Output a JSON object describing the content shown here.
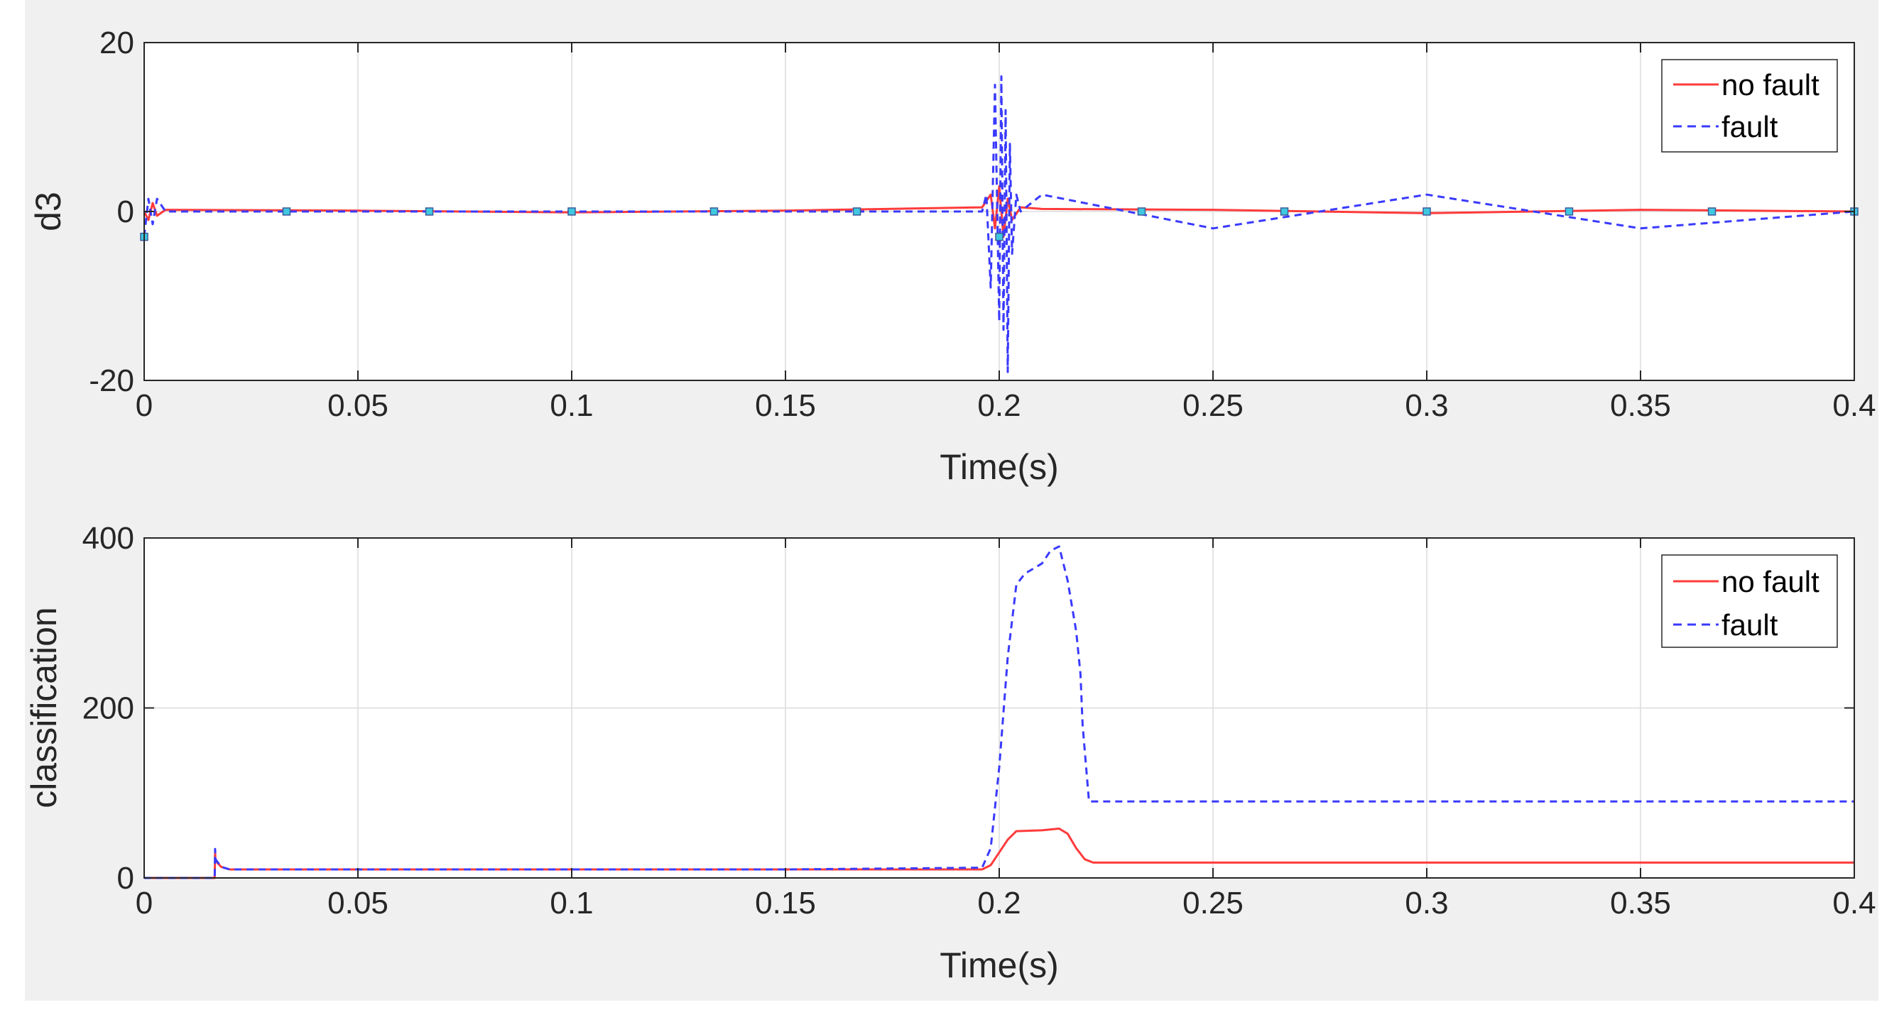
{
  "colors": {
    "figure_bg": "#f0f0f0",
    "axes_bg": "#ffffff",
    "no_fault": "#ff3b3b",
    "fault": "#3a3aff",
    "marker_fill": "#40c8e0",
    "grid": "#dcdcdc",
    "axis": "#262626"
  },
  "chart_data": [
    {
      "type": "line",
      "xlabel": "Time(s)",
      "ylabel": "d3",
      "xlim": [
        0,
        0.4
      ],
      "ylim": [
        -20,
        20
      ],
      "xticks": [
        0,
        0.05,
        0.1,
        0.15,
        0.2,
        0.25,
        0.3,
        0.35,
        0.4
      ],
      "xtick_labels": [
        "0",
        "0.05",
        "0.1",
        "0.15",
        "0.2",
        "0.25",
        "0.3",
        "0.35",
        "0.4"
      ],
      "yticks": [
        -20,
        0,
        20
      ],
      "ytick_labels": [
        "-20",
        "0",
        "20"
      ],
      "grid": true,
      "legend_position": "top-right",
      "series": [
        {
          "name": "no fault",
          "style": "solid",
          "color": "#ff3b3b",
          "x": [
            0,
            0.001,
            0.002,
            0.003,
            0.005,
            0.05,
            0.1,
            0.15,
            0.196,
            0.198,
            0.199,
            0.2,
            0.201,
            0.202,
            0.203,
            0.205,
            0.21,
            0.25,
            0.3,
            0.35,
            0.4
          ],
          "y": [
            0,
            -1,
            1,
            -0.5,
            0.2,
            0.1,
            -0.1,
            0.1,
            0.5,
            2,
            -2,
            3,
            -3,
            1.5,
            -1,
            0.5,
            0.3,
            0.2,
            -0.2,
            0.2,
            0
          ]
        },
        {
          "name": "fault",
          "style": "dashed",
          "color": "#3a3aff",
          "description": "small noise until 0.196 s, burst with peaks ~16 and ~-19 around 0.200 s, then sustained oscillation of about ±2 until 0.4 s",
          "x": [
            0,
            0.001,
            0.002,
            0.003,
            0.005,
            0.196,
            0.197,
            0.198,
            0.199,
            0.2,
            0.2005,
            0.201,
            0.2015,
            0.202,
            0.2025,
            0.203,
            0.204,
            0.205,
            0.21,
            0.25,
            0.3,
            0.35,
            0.4
          ],
          "y": [
            -3,
            1.5,
            -1.5,
            1.5,
            0,
            0,
            2,
            -9,
            15,
            -13,
            16,
            -14,
            12,
            -19,
            8,
            -5,
            2,
            0,
            2,
            -2,
            2,
            -2,
            0
          ]
        }
      ],
      "markers": {
        "x": [
          0,
          0.0333,
          0.0667,
          0.1,
          0.1333,
          0.1667,
          0.2,
          0.2333,
          0.2667,
          0.3,
          0.3333,
          0.3667,
          0.4
        ],
        "y": [
          -3,
          0,
          0,
          0,
          0,
          0,
          -3,
          0,
          0,
          0,
          0,
          0,
          0
        ]
      }
    },
    {
      "type": "line",
      "xlabel": "Time(s)",
      "ylabel": "classification",
      "xlim": [
        0,
        0.4
      ],
      "ylim": [
        0,
        400
      ],
      "xticks": [
        0,
        0.05,
        0.1,
        0.15,
        0.2,
        0.25,
        0.3,
        0.35,
        0.4
      ],
      "xtick_labels": [
        "0",
        "0.05",
        "0.1",
        "0.15",
        "0.2",
        "0.25",
        "0.3",
        "0.35",
        "0.4"
      ],
      "yticks": [
        0,
        200,
        400
      ],
      "ytick_labels": [
        "0",
        "200",
        "400"
      ],
      "grid": true,
      "legend_position": "top-right",
      "series": [
        {
          "name": "no fault",
          "style": "solid",
          "color": "#ff3b3b",
          "x": [
            0,
            0.0165,
            0.0166,
            0.0167,
            0.018,
            0.02,
            0.05,
            0.1,
            0.15,
            0.196,
            0.198,
            0.2,
            0.202,
            0.204,
            0.21,
            0.214,
            0.216,
            0.218,
            0.22,
            0.222,
            0.25,
            0.3,
            0.35,
            0.4
          ],
          "y": [
            0,
            0,
            30,
            20,
            13,
            10,
            10,
            10,
            10,
            10,
            15,
            30,
            45,
            55,
            56,
            58,
            52,
            35,
            22,
            18,
            18,
            18,
            18,
            18
          ]
        },
        {
          "name": "fault",
          "style": "dashed",
          "color": "#3a3aff",
          "x": [
            0,
            0.0165,
            0.0166,
            0.0167,
            0.018,
            0.02,
            0.05,
            0.1,
            0.15,
            0.196,
            0.198,
            0.2,
            0.202,
            0.204,
            0.206,
            0.21,
            0.212,
            0.214,
            0.216,
            0.218,
            0.219,
            0.2195,
            0.221,
            0.23,
            0.3,
            0.4
          ],
          "y": [
            0,
            0,
            34,
            22,
            13,
            10,
            10,
            10,
            10,
            12,
            35,
            130,
            260,
            345,
            358,
            370,
            385,
            390,
            350,
            290,
            240,
            180,
            90,
            90,
            90,
            90
          ]
        }
      ]
    }
  ]
}
